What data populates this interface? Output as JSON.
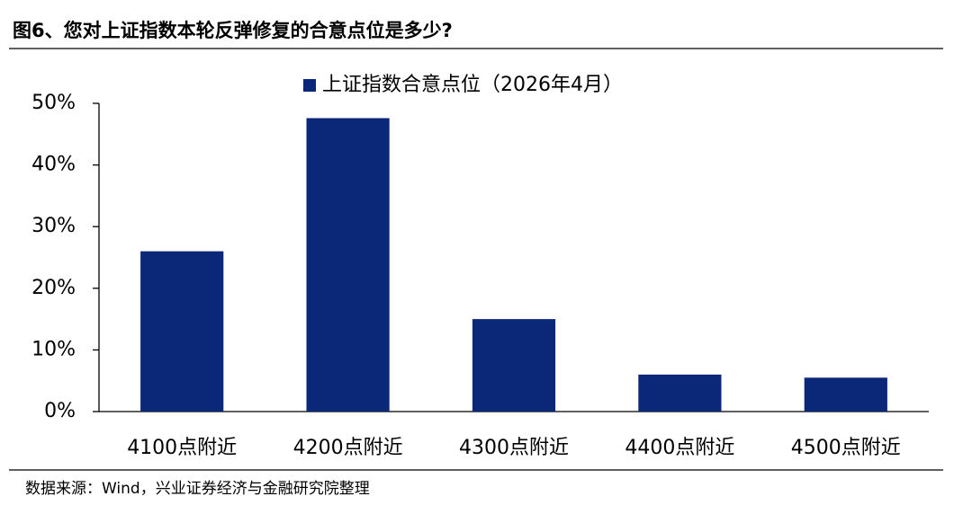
{
  "chart_data": {
    "type": "bar",
    "title": "图6、您对上证指数本轮反弹修复的合意点位是多少?",
    "source": "数据来源：Wind，兴业证券经济与金融研究院整理",
    "categories": [
      "4100点附近",
      "4200点附近",
      "4300点附近",
      "4400点附近",
      "4500点附近"
    ],
    "series": [
      {
        "name": "上证指数合意点位（2026年4月）",
        "color": "#0b2878",
        "values": [
          26,
          47.6,
          15,
          6,
          5.5
        ]
      }
    ],
    "ylim": [
      0,
      50
    ],
    "yticks": [
      {
        "value": 0,
        "label": "0%"
      },
      {
        "value": 10,
        "label": "10%"
      },
      {
        "value": 20,
        "label": "20%"
      },
      {
        "value": 30,
        "label": "30%"
      },
      {
        "value": 40,
        "label": "40%"
      },
      {
        "value": 50,
        "label": "50%"
      }
    ],
    "grid": false,
    "legend": "top"
  }
}
